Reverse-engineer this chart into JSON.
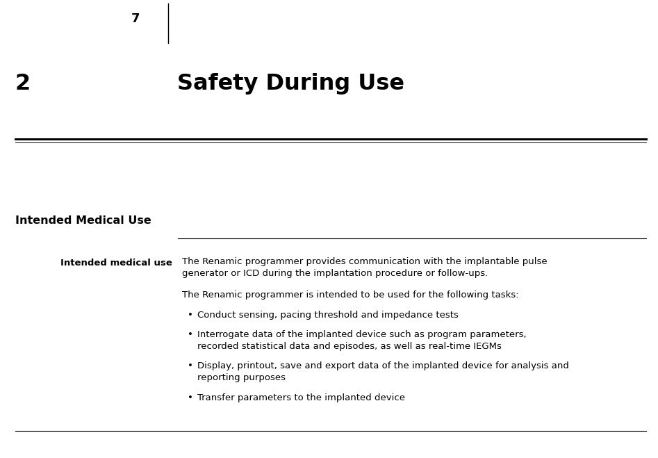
{
  "bg_color": "#ffffff",
  "page_number": "7",
  "chapter_number": "2",
  "chapter_title": "Safety During Use",
  "section_title": "Intended Medical Use",
  "label": "Intended medical use",
  "para1_line1": "The Renamic programmer provides communication with the implantable pulse",
  "para1_line2": "generator or ICD during the implantation procedure or follow-ups.",
  "para2": "The Renamic programmer is intended to be used for the following tasks:",
  "bullet1": "Conduct sensing, pacing threshold and impedance tests",
  "bullet2_line1": "Interrogate data of the implanted device such as program parameters,",
  "bullet2_line2": "recorded statistical data and episodes, as well as real-time IEGMs",
  "bullet3_line1": "Display, printout, save and export data of the implanted device for analysis and",
  "bullet3_line2": "reporting purposes",
  "bullet4": "Transfer parameters to the implanted device"
}
